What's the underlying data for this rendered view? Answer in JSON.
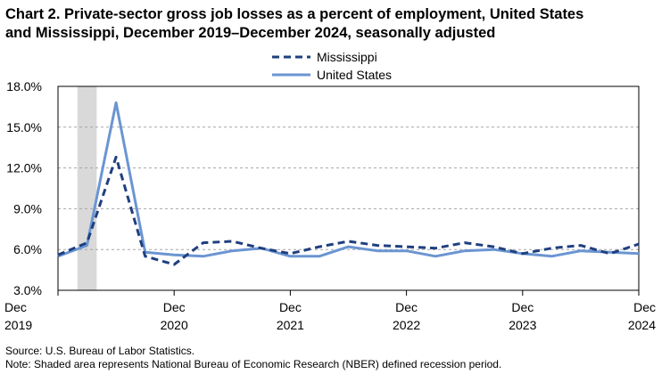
{
  "title": {
    "line1": "Chart 2. Private-sector gross job losses as a percent of employment, United States",
    "line2": "and Mississippi,  December 2019–December 2024, seasonally adjusted"
  },
  "source": "Source: U.S. Bureau of Labor Statistics.",
  "note": "Note: Shaded area represents National Bureau of Economic Research (NBER) defined  recession period.",
  "colors": {
    "mississippi": "#1f3f7f",
    "united_states": "#6b95d2",
    "recession": "#d9d9d9",
    "grid": "#a6a6a6"
  },
  "chart_data": {
    "type": "line",
    "x": [
      "Dec 2019",
      "Mar 2020",
      "Jun 2020",
      "Sep 2020",
      "Dec 2020",
      "Mar 2021",
      "Jun 2021",
      "Sep 2021",
      "Dec 2021",
      "Mar 2022",
      "Jun 2022",
      "Sep 2022",
      "Dec 2022",
      "Mar 2023",
      "Jun 2023",
      "Sep 2023",
      "Dec 2023",
      "Mar 2024",
      "Jun 2024",
      "Sep 2024",
      "Dec 2024"
    ],
    "series": [
      {
        "name": "Mississippi",
        "style": "dashed",
        "values": [
          5.6,
          6.5,
          12.8,
          5.5,
          4.9,
          6.5,
          6.6,
          6.1,
          5.7,
          6.2,
          6.6,
          6.3,
          6.2,
          6.1,
          6.5,
          6.2,
          5.7,
          6.1,
          6.3,
          5.7,
          6.4
        ]
      },
      {
        "name": "United States",
        "style": "solid",
        "values": [
          5.5,
          6.3,
          16.8,
          5.8,
          5.6,
          5.5,
          5.9,
          6.1,
          5.5,
          5.5,
          6.2,
          5.9,
          5.9,
          5.5,
          5.9,
          6.0,
          5.7,
          5.5,
          5.9,
          5.8,
          5.7
        ]
      }
    ],
    "y_ticks": [
      "3.0%",
      "6.0%",
      "9.0%",
      "12.0%",
      "15.0%",
      "18.0%"
    ],
    "ylim": [
      3.0,
      18.0
    ],
    "x_tick_labels": [
      {
        "index": 0,
        "month": "Dec",
        "year": "2019"
      },
      {
        "index": 4,
        "month": "Dec",
        "year": "2020"
      },
      {
        "index": 8,
        "month": "Dec",
        "year": "2021"
      },
      {
        "index": 12,
        "month": "Dec",
        "year": "2022"
      },
      {
        "index": 16,
        "month": "Dec",
        "year": "2023"
      },
      {
        "index": 20,
        "month": "Dec",
        "year": "2024"
      }
    ],
    "recession": {
      "start": "Feb 2020",
      "end": "Apr 2020"
    },
    "grid": "horizontal dashed",
    "legend": "top-center"
  }
}
